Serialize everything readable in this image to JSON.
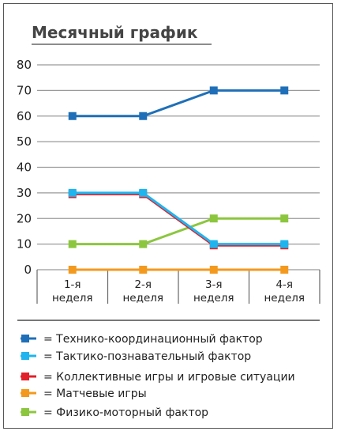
{
  "chart_data": {
    "type": "line",
    "title": "Месячный график",
    "categories": [
      [
        "1-я",
        "неделя"
      ],
      [
        "2-я",
        "неделя"
      ],
      [
        "3-я",
        "неделя"
      ],
      [
        "4-я",
        "неделя"
      ]
    ],
    "ylim": [
      0,
      80
    ],
    "yticks": [
      0,
      10,
      20,
      30,
      40,
      50,
      60,
      70,
      80
    ],
    "grid": true,
    "legend_position": "bottom",
    "series": [
      {
        "name": "= Технико-координационный фактор",
        "color": "#1f6fb8",
        "values": [
          60,
          60,
          70,
          70
        ]
      },
      {
        "name": "= Тактико-познавательный фактор",
        "color": "#1fb4ee",
        "values": [
          30,
          30,
          10,
          10
        ]
      },
      {
        "name": "= Коллективные игры и игровые ситуации",
        "color": "#e0202a",
        "values": [
          29.5,
          29.5,
          9.5,
          9.5
        ]
      },
      {
        "name": "= Матчевые игры",
        "color": "#f39a1e",
        "values": [
          0,
          0,
          0,
          0
        ]
      },
      {
        "name": "= Физико-моторный фактор",
        "color": "#8cc63f",
        "values": [
          10,
          10,
          20,
          20
        ]
      }
    ]
  }
}
